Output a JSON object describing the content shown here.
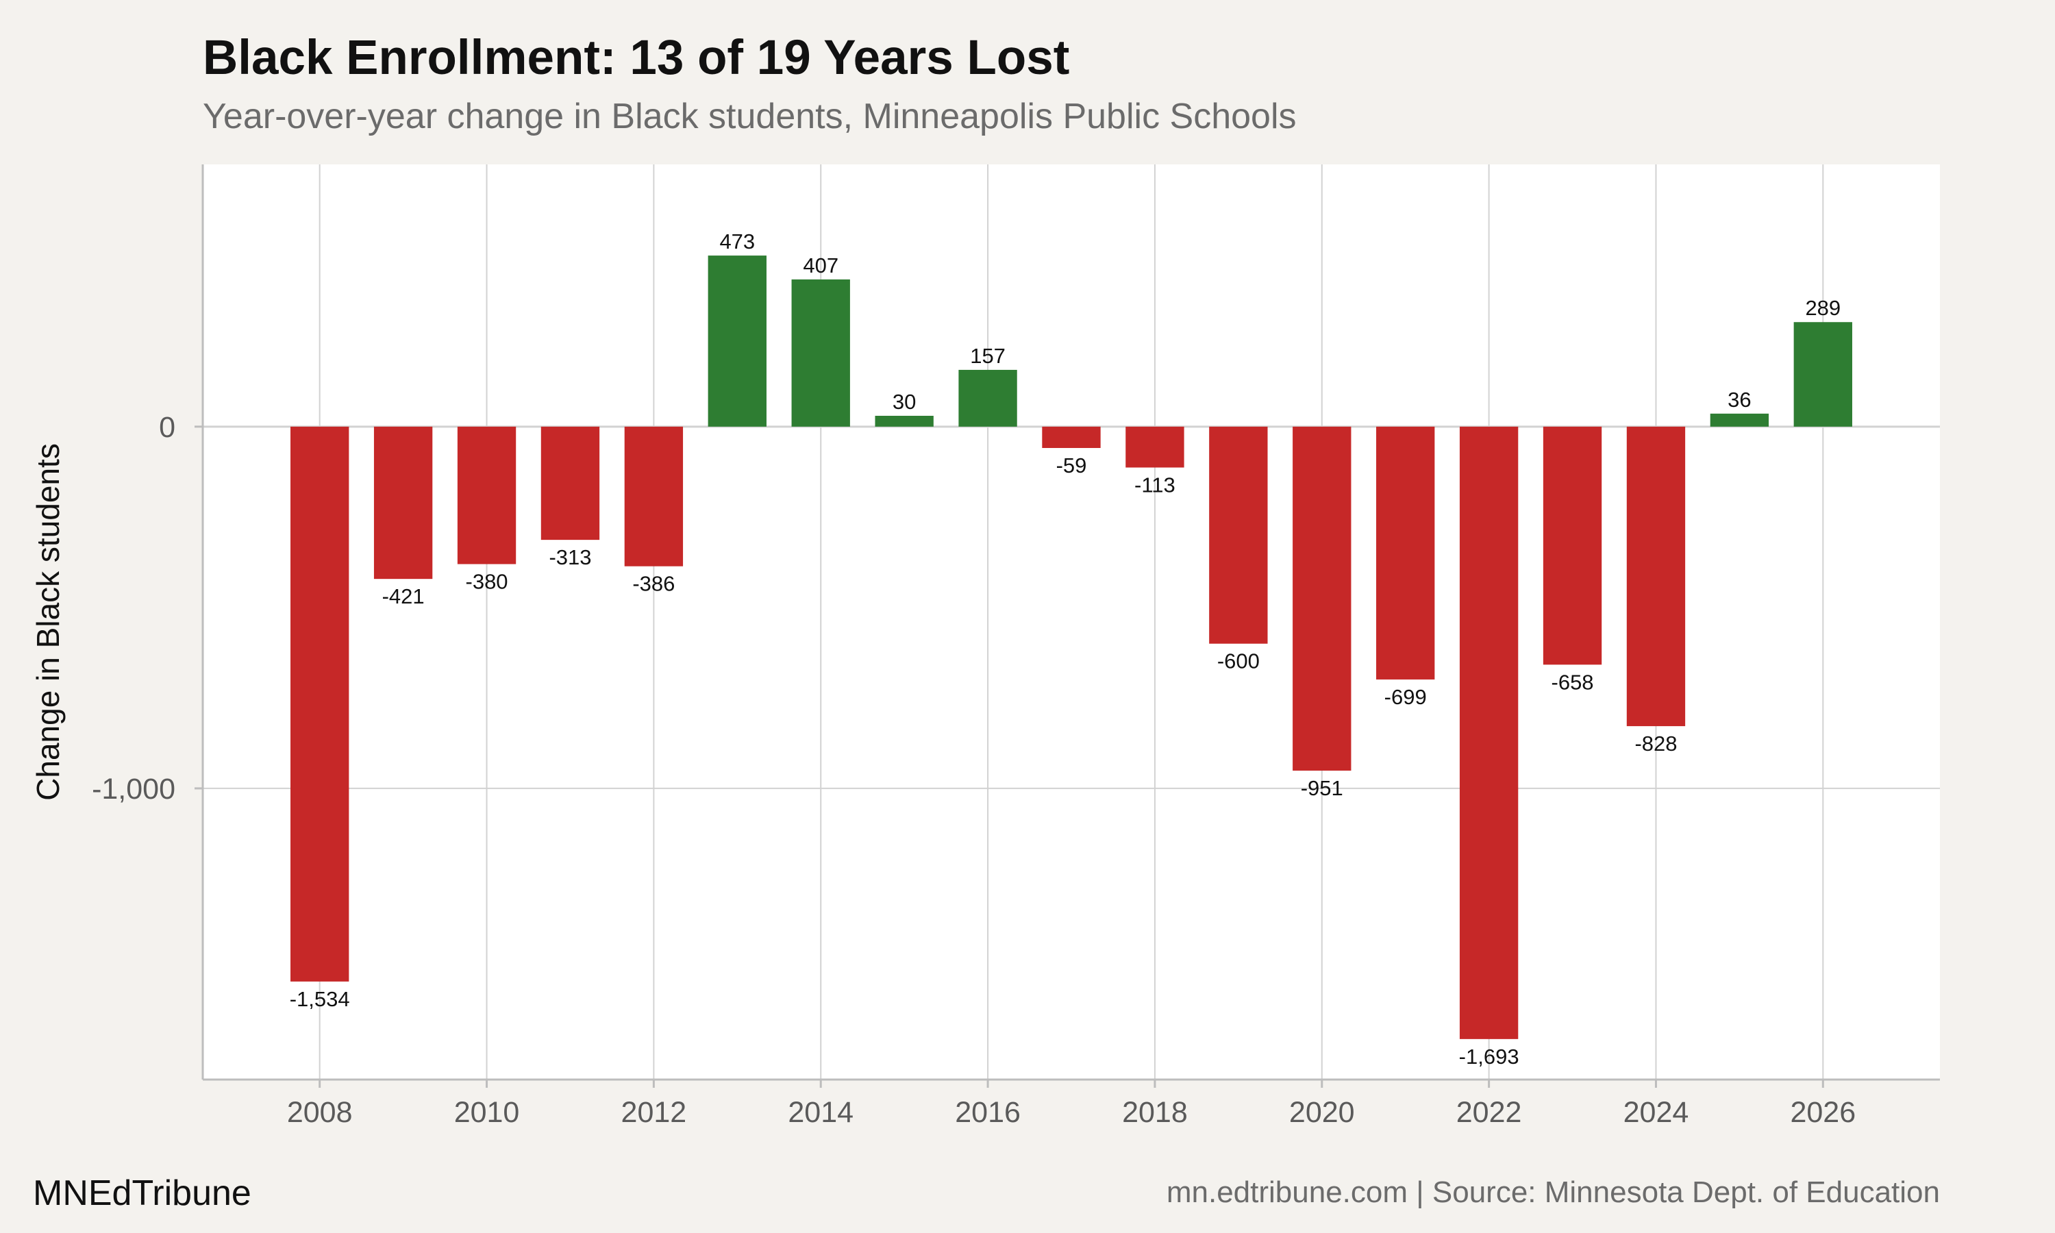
{
  "header": {
    "title": "Black Enrollment: 13 of 19 Years Lost",
    "subtitle": "Year-over-year change in Black students, Minneapolis Public Schools"
  },
  "footer": {
    "brand": "MNEdTribune",
    "source": "mn.edtribune.com | Source: Minnesota Dept. of Education"
  },
  "colors": {
    "positive": "#2e7d32",
    "negative": "#c62828",
    "plot_background": "#ffffff",
    "page_background": "#f4f2ee",
    "grid": "#d2d2d2"
  },
  "chart_data": {
    "type": "bar",
    "title": "Black Enrollment: 13 of 19 Years Lost",
    "subtitle": "Year-over-year change in Black students, Minneapolis Public Schools",
    "xlabel": "",
    "ylabel": "Change in Black students",
    "x": [
      2008,
      2009,
      2010,
      2011,
      2012,
      2013,
      2014,
      2015,
      2016,
      2017,
      2018,
      2019,
      2020,
      2021,
      2022,
      2023,
      2024,
      2025,
      2026
    ],
    "values": [
      -1534,
      -421,
      -380,
      -313,
      -386,
      473,
      407,
      30,
      157,
      -59,
      -113,
      -600,
      -951,
      -699,
      -1693,
      -658,
      -828,
      36,
      289
    ],
    "value_labels": [
      "-1,534",
      "-421",
      "-380",
      "-313",
      "-386",
      "473",
      "407",
      "30",
      "157",
      "-59",
      "-113",
      "-600",
      "-951",
      "-699",
      "-1,693",
      "-658",
      "-828",
      "36",
      "289"
    ],
    "x_ticks": [
      2008,
      2010,
      2012,
      2014,
      2016,
      2018,
      2020,
      2022,
      2024,
      2026
    ],
    "x_tick_labels": [
      "2008",
      "2010",
      "2012",
      "2014",
      "2016",
      "2018",
      "2020",
      "2022",
      "2024",
      "2026"
    ],
    "y_ticks": [
      0,
      -1000
    ],
    "y_tick_labels": [
      "0",
      "-1,000"
    ],
    "xlim": [
      2006.6,
      2027.4
    ],
    "ylim": [
      -1805,
      725
    ],
    "grid": true,
    "legend": "none"
  }
}
